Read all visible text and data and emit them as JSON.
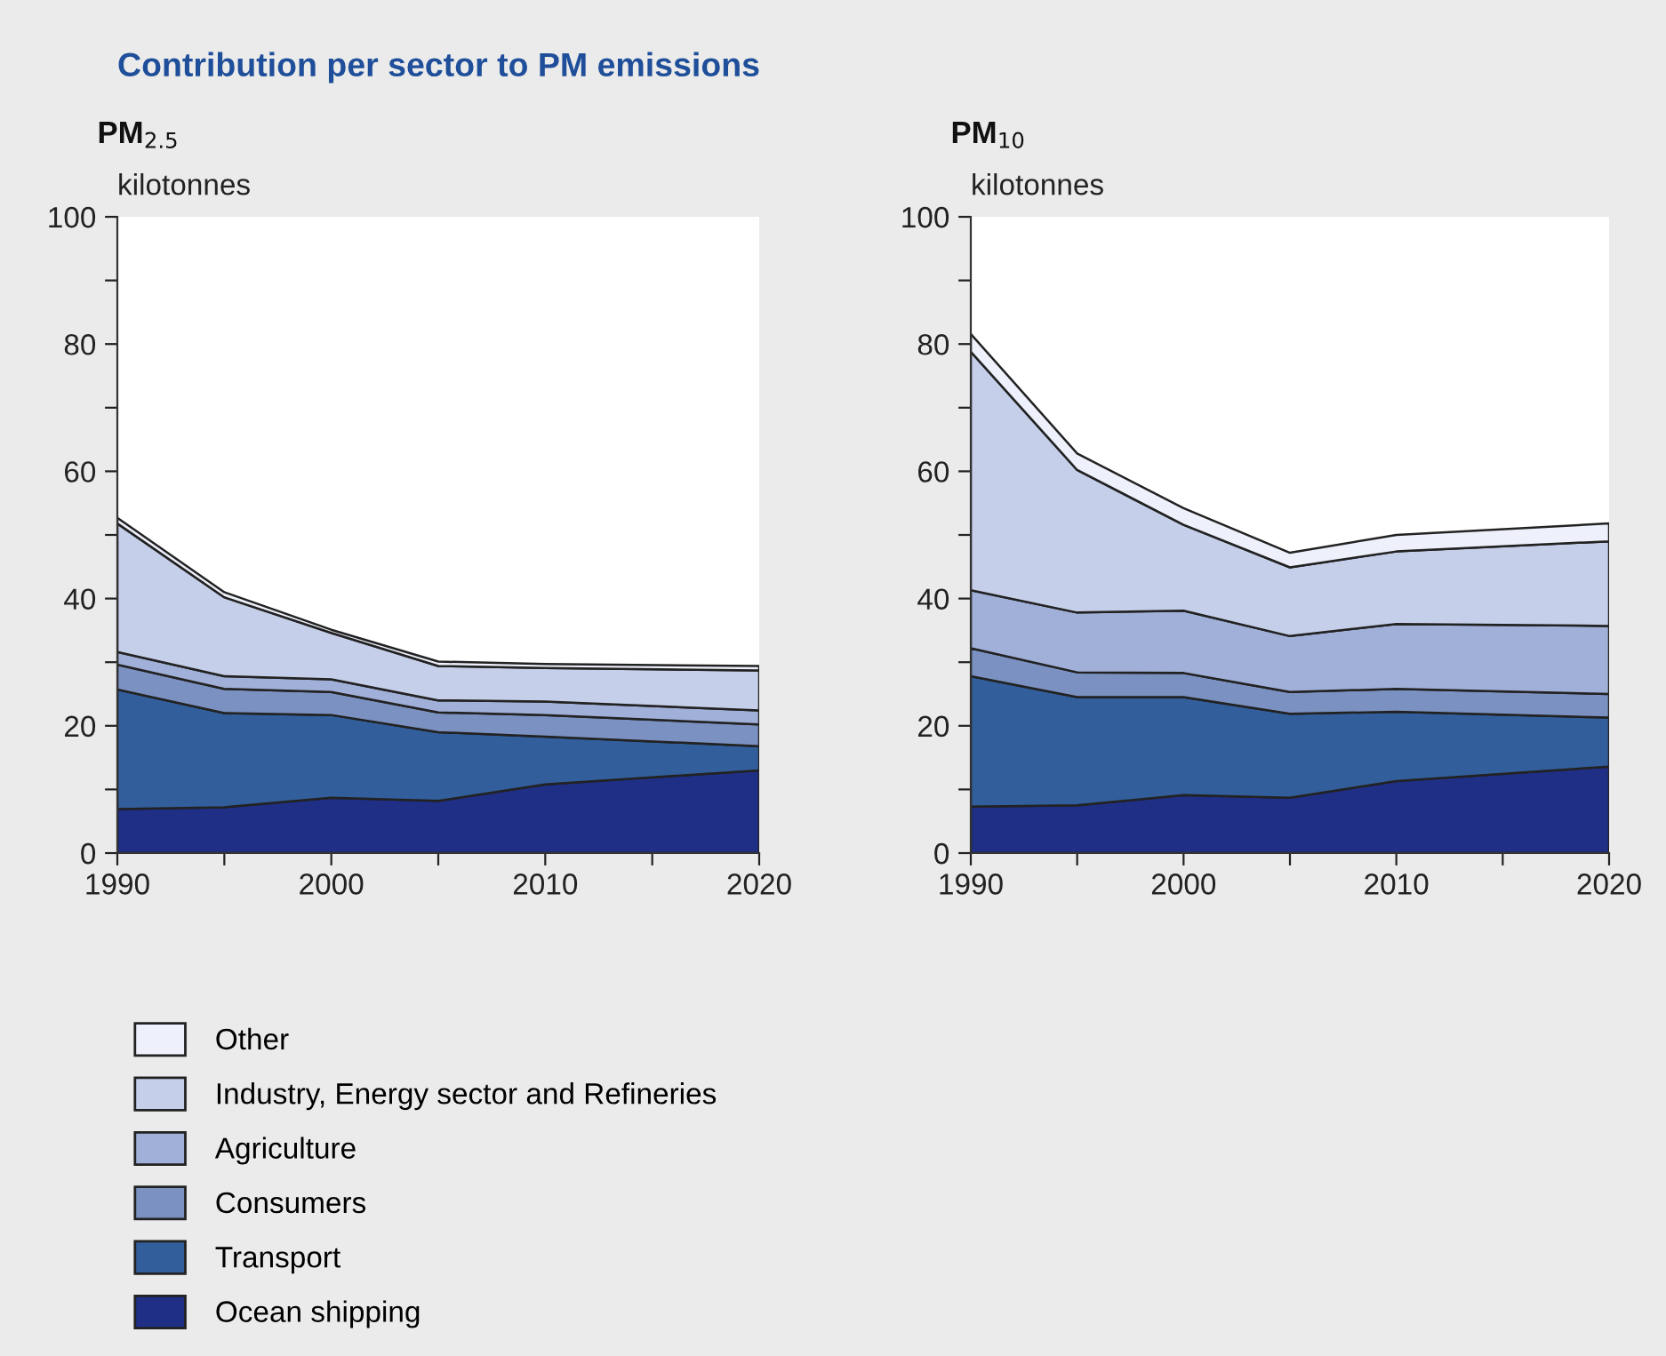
{
  "chart_data": [
    {
      "type": "area",
      "stacked": true,
      "title": "Contribution per sector to PM emissions",
      "subtitle": "PM$_{2.5}$",
      "ylabel": "kilotonnes",
      "x": [
        1990,
        1995,
        2000,
        2005,
        2010,
        2020
      ],
      "xlim": [
        1990,
        2020
      ],
      "xticks": [
        1990,
        {
          "value": 1995,
          "label": null
        },
        2000,
        {
          "value": 2005,
          "label": null
        },
        2010,
        {
          "value": 2015,
          "label": null
        },
        2020
      ],
      "ylim": [
        0,
        100
      ],
      "yticks": [
        0,
        {
          "value": 10,
          "label": null
        },
        20,
        {
          "value": 30,
          "label": null
        },
        40,
        {
          "value": 50,
          "label": null
        },
        60,
        {
          "value": 70,
          "label": null
        },
        80,
        {
          "value": 90,
          "label": null
        },
        100
      ],
      "grid": false,
      "legend": "bottom",
      "series": [
        {
          "name": "Ocean shipping",
          "color": "#1f2f86",
          "values": [
            6.9,
            7.2,
            8.7,
            8.2,
            10.8,
            13.0
          ]
        },
        {
          "name": "Transport",
          "color": "#325e9b",
          "values": [
            18.8,
            14.8,
            13.0,
            10.8,
            7.5,
            3.8
          ]
        },
        {
          "name": "Consumers",
          "color": "#7b91c1",
          "values": [
            3.9,
            3.8,
            3.6,
            3.1,
            3.4,
            3.4
          ]
        },
        {
          "name": "Agriculture",
          "color": "#a0b0d8",
          "values": [
            2.0,
            2.0,
            2.0,
            1.9,
            2.1,
            2.2
          ]
        },
        {
          "name": "Industry, Energy sector and Refineries",
          "color": "#c6cfea",
          "values": [
            20.2,
            12.4,
            7.3,
            5.4,
            5.3,
            6.3
          ]
        },
        {
          "name": "Other",
          "color": "#eef1fb",
          "values": [
            0.9,
            0.8,
            0.5,
            0.7,
            0.6,
            0.7
          ]
        }
      ]
    },
    {
      "type": "area",
      "stacked": true,
      "subtitle": "PM$_{10}$",
      "ylabel": "kilotonnes",
      "x": [
        1990,
        1995,
        2000,
        2005,
        2010,
        2020
      ],
      "xlim": [
        1990,
        2020
      ],
      "xticks": [
        1990,
        {
          "value": 1995,
          "label": null
        },
        2000,
        {
          "value": 2005,
          "label": null
        },
        2010,
        {
          "value": 2015,
          "label": null
        },
        2020
      ],
      "ylim": [
        0,
        100
      ],
      "yticks": [
        0,
        {
          "value": 10,
          "label": null
        },
        20,
        {
          "value": 30,
          "label": null
        },
        40,
        {
          "value": 50,
          "label": null
        },
        60,
        {
          "value": 70,
          "label": null
        },
        80,
        {
          "value": 90,
          "label": null
        },
        100
      ],
      "grid": false,
      "series": [
        {
          "color": "#1f2f86",
          "values": [
            7.3,
            7.5,
            9.1,
            8.7,
            11.3,
            13.6
          ]
        },
        {
          "color": "#325e9b",
          "values": [
            20.5,
            17.0,
            15.4,
            13.2,
            10.9,
            7.7
          ]
        },
        {
          "color": "#7b91c1",
          "values": [
            4.4,
            3.9,
            3.8,
            3.4,
            3.6,
            3.7
          ]
        },
        {
          "color": "#a0b0d8",
          "values": [
            9.1,
            9.4,
            9.8,
            8.8,
            10.2,
            10.7
          ]
        },
        {
          "color": "#c6cfea",
          "values": [
            37.5,
            22.4,
            13.5,
            10.8,
            11.4,
            13.3
          ]
        },
        {
          "color": "#eef1fb",
          "values": [
            2.8,
            2.6,
            2.6,
            2.3,
            2.6,
            2.8
          ]
        }
      ]
    }
  ]
}
